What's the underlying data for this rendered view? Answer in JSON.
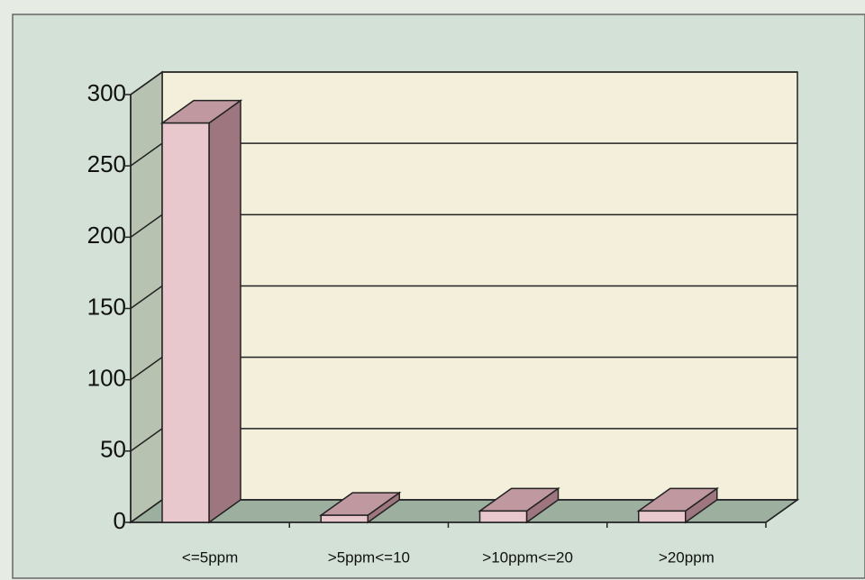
{
  "chart_data": {
    "type": "bar3d",
    "categories": [
      "<=5ppm",
      ">5ppm<=10",
      ">10ppm<=20",
      ">20ppm"
    ],
    "values": [
      280,
      5,
      8,
      8
    ],
    "color": "#e8c8cc",
    "ylim": [
      0,
      300
    ],
    "yticks": [
      0,
      50,
      100,
      150,
      200,
      250,
      300
    ],
    "grid": true
  }
}
